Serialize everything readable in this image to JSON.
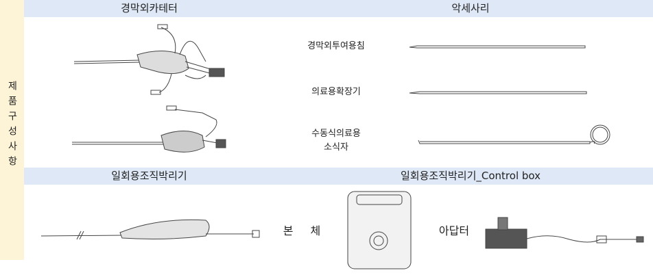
{
  "side_label": "제품구성사항",
  "sections": [
    {
      "title": "경막외카테터"
    },
    {
      "title": "악세사리",
      "items": [
        {
          "lines": [
            "경막외투여용침"
          ]
        },
        {
          "lines": [
            "의료용확장기"
          ]
        },
        {
          "lines": [
            "수동식의료용",
            "소식자"
          ]
        }
      ]
    },
    {
      "title": "일회용조직박리기"
    },
    {
      "title": "일회용조직박리기_Control box",
      "items": [
        {
          "lines": [
            "본 체"
          ]
        },
        {
          "lines": [
            "아답터"
          ]
        }
      ]
    }
  ]
}
